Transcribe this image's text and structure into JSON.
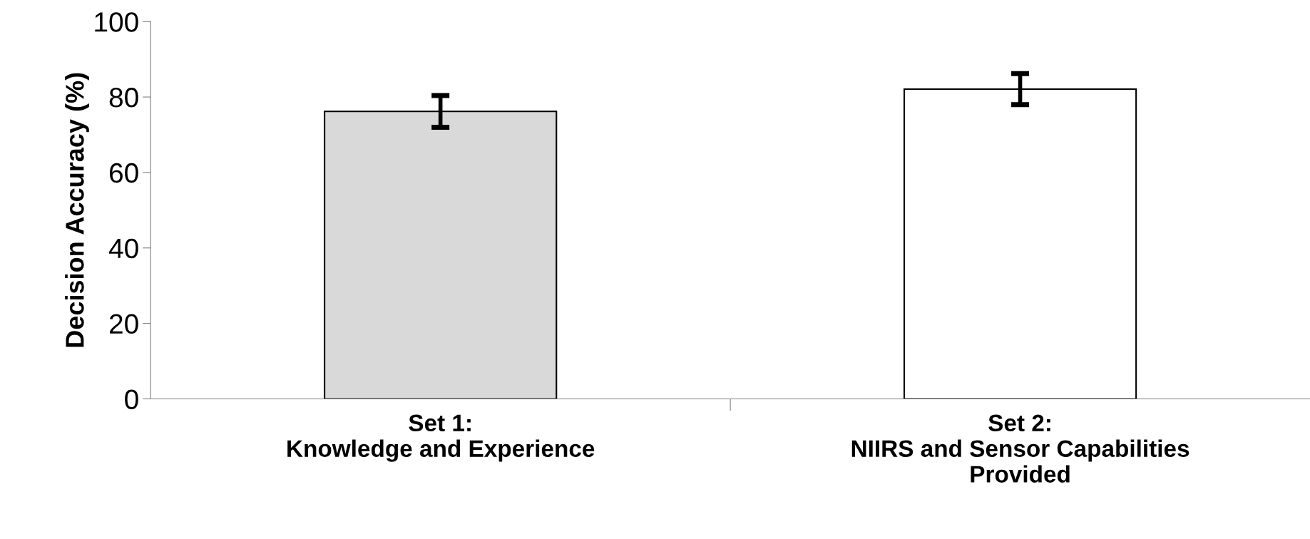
{
  "chart_data": {
    "type": "bar",
    "ylabel": "Decision Accuracy (%)",
    "categories": [
      "Set 1:\nKnowledge and Experience",
      "Set 2:\nNIIRS and Sensor Capabilities\nProvided"
    ],
    "values": [
      76.2,
      82.1
    ],
    "colors": [
      "#d9d9d9",
      "#ffffff"
    ],
    "errors": [
      4.2,
      4.1
    ],
    "ylim": [
      0,
      100
    ],
    "yticks": [
      0,
      20,
      40,
      60,
      80,
      100
    ],
    "grid": false
  }
}
